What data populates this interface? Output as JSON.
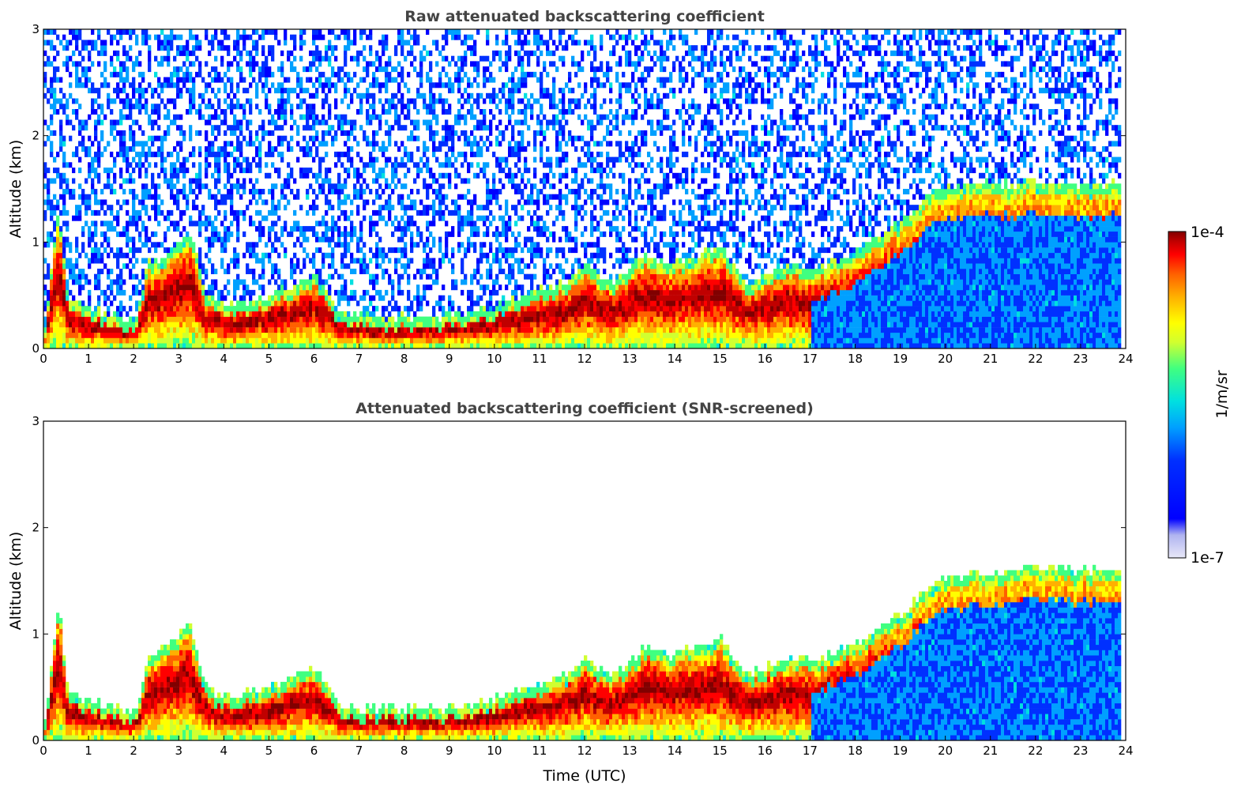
{
  "chart_data": [
    {
      "type": "heatmap",
      "title": "Raw attenuated backscattering coefficient",
      "xlabel": "",
      "ylabel": "Altitude (km)",
      "xlim": [
        0,
        24
      ],
      "ylim": [
        0,
        3
      ],
      "xticks": [
        "0",
        "1",
        "2",
        "3",
        "4",
        "5",
        "6",
        "7",
        "8",
        "9",
        "10",
        "11",
        "12",
        "13",
        "14",
        "15",
        "16",
        "17",
        "18",
        "19",
        "20",
        "21",
        "22",
        "23",
        "24"
      ],
      "yticks": [
        "0",
        "1",
        "2",
        "3"
      ],
      "screened": false,
      "layer_top_km": [
        [
          0,
          0.2
        ],
        [
          0.3,
          1.3
        ],
        [
          0.5,
          0.5
        ],
        [
          0.8,
          0.4
        ],
        [
          1.5,
          0.3
        ],
        [
          2,
          0.25
        ],
        [
          2.3,
          0.8
        ],
        [
          2.8,
          0.9
        ],
        [
          3.2,
          1.1
        ],
        [
          3.6,
          0.5
        ],
        [
          4,
          0.4
        ],
        [
          4.5,
          0.45
        ],
        [
          5,
          0.5
        ],
        [
          5.5,
          0.6
        ],
        [
          6,
          0.7
        ],
        [
          6.5,
          0.35
        ],
        [
          7,
          0.3
        ],
        [
          8,
          0.3
        ],
        [
          9,
          0.3
        ],
        [
          10,
          0.4
        ],
        [
          11,
          0.55
        ],
        [
          11.5,
          0.6
        ],
        [
          12,
          0.8
        ],
        [
          12.5,
          0.6
        ],
        [
          13,
          0.75
        ],
        [
          13.3,
          0.9
        ],
        [
          13.8,
          0.8
        ],
        [
          14.3,
          0.85
        ],
        [
          15,
          0.95
        ],
        [
          15.6,
          0.6
        ],
        [
          16,
          0.7
        ],
        [
          16.6,
          0.8
        ],
        [
          17,
          0.75
        ],
        [
          18,
          0.9
        ],
        [
          19,
          1.2
        ],
        [
          19.8,
          1.5
        ],
        [
          20.5,
          1.55
        ],
        [
          21.5,
          1.55
        ],
        [
          22,
          1.6
        ],
        [
          22.2,
          1.55
        ]
      ],
      "colorbar": {
        "label": "1/m/sr",
        "max_label": "1e-4",
        "min_label": "1e-7",
        "scale": "log"
      }
    },
    {
      "type": "heatmap",
      "title": "Attenuated backscattering coefficient (SNR-screened)",
      "xlabel": "Time (UTC)",
      "ylabel": "Altitude (km)",
      "xlim": [
        0,
        24
      ],
      "ylim": [
        0,
        3
      ],
      "xticks": [
        "0",
        "1",
        "2",
        "3",
        "4",
        "5",
        "6",
        "7",
        "8",
        "9",
        "10",
        "11",
        "12",
        "13",
        "14",
        "15",
        "16",
        "17",
        "18",
        "19",
        "20",
        "21",
        "22",
        "23",
        "24"
      ],
      "yticks": [
        "0",
        "1",
        "2",
        "3"
      ],
      "screened": true,
      "layer_top_km": [
        [
          0,
          0.2
        ],
        [
          0.3,
          1.3
        ],
        [
          0.5,
          0.5
        ],
        [
          0.8,
          0.4
        ],
        [
          1.5,
          0.3
        ],
        [
          2,
          0.25
        ],
        [
          2.3,
          0.8
        ],
        [
          2.8,
          0.9
        ],
        [
          3.2,
          1.1
        ],
        [
          3.6,
          0.5
        ],
        [
          4,
          0.4
        ],
        [
          4.5,
          0.45
        ],
        [
          5,
          0.5
        ],
        [
          5.5,
          0.6
        ],
        [
          6,
          0.7
        ],
        [
          6.5,
          0.35
        ],
        [
          7,
          0.3
        ],
        [
          8,
          0.3
        ],
        [
          9,
          0.3
        ],
        [
          10,
          0.4
        ],
        [
          11,
          0.55
        ],
        [
          11.5,
          0.6
        ],
        [
          12,
          0.8
        ],
        [
          12.5,
          0.6
        ],
        [
          13,
          0.75
        ],
        [
          13.3,
          0.9
        ],
        [
          13.8,
          0.8
        ],
        [
          14.3,
          0.85
        ],
        [
          15,
          0.95
        ],
        [
          15.6,
          0.6
        ],
        [
          16,
          0.7
        ],
        [
          16.6,
          0.8
        ],
        [
          17,
          0.75
        ],
        [
          18,
          0.9
        ],
        [
          19,
          1.2
        ],
        [
          19.8,
          1.5
        ],
        [
          20.5,
          1.55
        ],
        [
          21.5,
          1.6
        ],
        [
          22,
          1.65
        ],
        [
          22.2,
          1.6
        ]
      ],
      "colorbar": {
        "label": "1/m/sr",
        "max_label": "1e-4",
        "min_label": "1e-7",
        "scale": "log"
      }
    }
  ],
  "colormap": [
    "#e8e8f8",
    "#b0b4f0",
    "#0000ff",
    "#0030ff",
    "#00a0ff",
    "#00e0e0",
    "#40ff80",
    "#d0ff30",
    "#ffff00",
    "#ffb000",
    "#ff6000",
    "#ff0000",
    "#c00000",
    "#800000"
  ]
}
